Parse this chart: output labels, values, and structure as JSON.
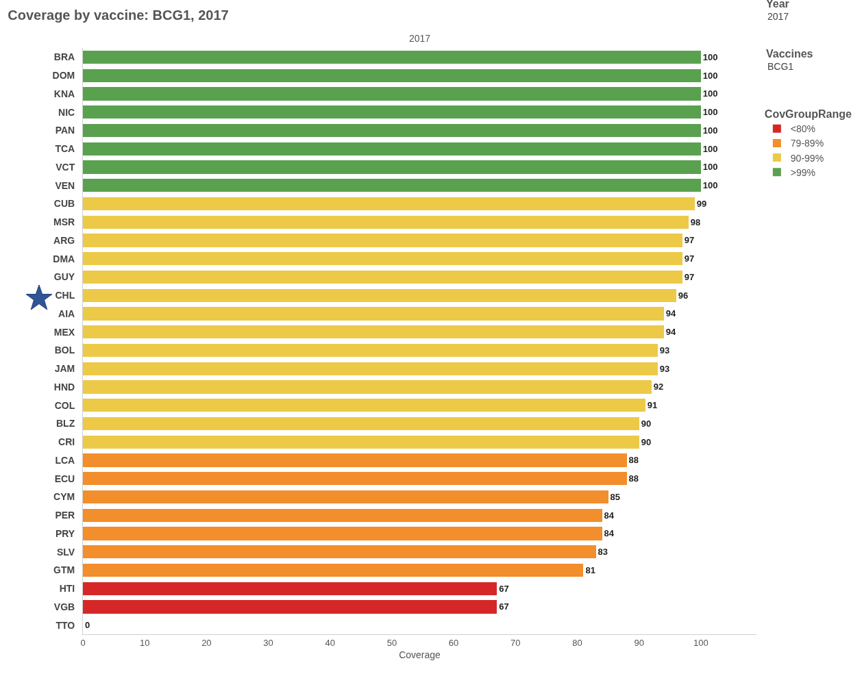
{
  "chart_data": {
    "type": "bar",
    "orientation": "horizontal",
    "stacked": true,
    "title": "Coverage by vaccine: BCG1, 2017",
    "xlabel": "Coverage",
    "legend_title": "CovGroupRange",
    "legend": "right",
    "grid": false,
    "data_labels": true,
    "categories": [
      "BRA",
      "DOM",
      "KNA",
      "NIC",
      "PAN",
      "TCA",
      "VCT",
      "VEN",
      "CUB",
      "MSR",
      "ARG",
      "DMA",
      "GUY",
      "CHL",
      "AIA",
      "MEX",
      "BOL",
      "JAM",
      "HND",
      "COL",
      "BLZ",
      "CRI",
      "LCA",
      "ECU",
      "CYM",
      "PER",
      "PRY",
      "SLV",
      "GTM",
      "HTI",
      "VGB",
      "TTO"
    ],
    "xlim": [
      0,
      109
    ],
    "xticks": [
      0,
      10,
      20,
      30,
      40,
      50,
      60,
      70,
      80,
      90,
      100
    ],
    "series": [
      {
        "name": "<80%",
        "color": "#d62728",
        "values": [
          null,
          null,
          null,
          null,
          null,
          null,
          null,
          null,
          null,
          null,
          null,
          null,
          null,
          null,
          null,
          null,
          null,
          null,
          null,
          null,
          null,
          null,
          null,
          null,
          null,
          null,
          null,
          null,
          null,
          67,
          67,
          0
        ]
      },
      {
        "name": "79-89%",
        "color": "#f28e2b",
        "values": [
          null,
          null,
          null,
          null,
          null,
          null,
          null,
          null,
          null,
          null,
          null,
          null,
          null,
          null,
          null,
          null,
          null,
          null,
          null,
          null,
          null,
          null,
          88,
          88,
          85,
          84,
          84,
          83,
          81,
          null,
          null,
          null
        ]
      },
      {
        "name": "90-99%",
        "color": "#edc948",
        "values": [
          null,
          null,
          null,
          null,
          null,
          null,
          null,
          null,
          99,
          98,
          97,
          97,
          97,
          96,
          94,
          94,
          93,
          93,
          92,
          91,
          90,
          90,
          null,
          null,
          null,
          null,
          null,
          null,
          null,
          null,
          null,
          null
        ]
      },
      {
        "name": ">99%",
        "color": "#59a14f",
        "values": [
          100,
          100,
          100,
          100,
          100,
          100,
          100,
          100,
          null,
          null,
          null,
          null,
          null,
          null,
          null,
          null,
          null,
          null,
          null,
          null,
          null,
          null,
          null,
          null,
          null,
          null,
          null,
          null,
          null,
          null,
          null,
          null
        ]
      }
    ],
    "annotations": [
      "2017",
      "Year",
      "2017",
      "Vaccines",
      "BCG1"
    ]
  }
}
